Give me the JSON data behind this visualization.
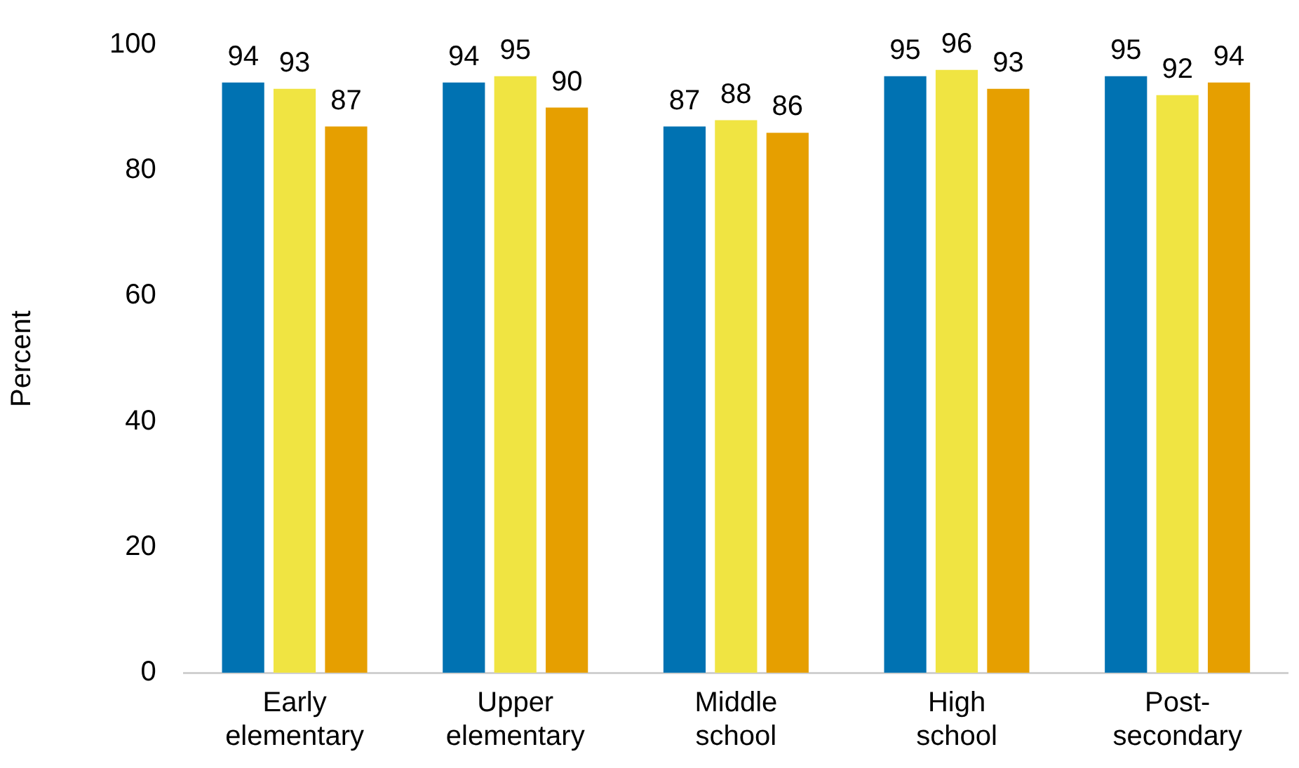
{
  "chart_data": {
    "type": "bar",
    "ylabel": "Percent",
    "categories": [
      "Early elementary",
      "Upper elementary",
      "Middle school",
      "High school",
      "Post-secondary"
    ],
    "series": [
      {
        "color": "#0072b2",
        "values": [
          94,
          94,
          87,
          95,
          95
        ]
      },
      {
        "color": "#f0e442",
        "values": [
          93,
          95,
          88,
          96,
          92
        ]
      },
      {
        "color": "#e69f00",
        "values": [
          87,
          90,
          86,
          93,
          94
        ]
      }
    ],
    "ylim": [
      0,
      100
    ],
    "yticks": [
      0,
      20,
      40,
      60,
      80,
      100
    ],
    "grid": false,
    "legend": false,
    "data_labels": true
  }
}
